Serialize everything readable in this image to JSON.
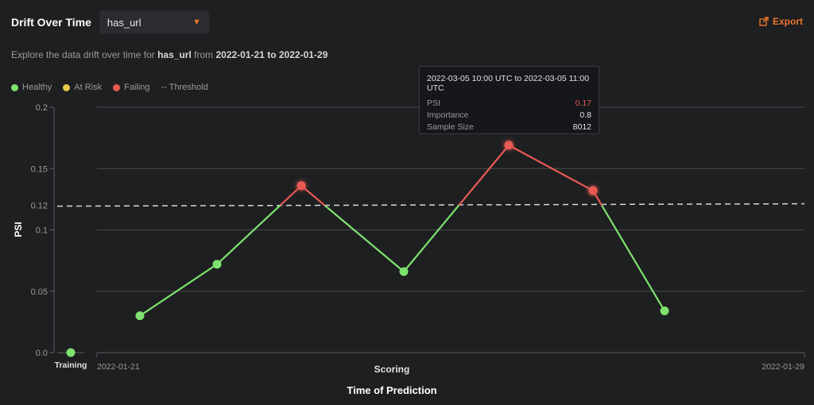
{
  "header": {
    "title": "Drift Over Time",
    "feature_select": "has_url",
    "export_label": "Export"
  },
  "subtitle": {
    "prefix": "Explore the data drift over time for",
    "feature": "has_url",
    "from_word": "from",
    "start": "2022-01-21",
    "to_word": "to",
    "end": "2022-01-29"
  },
  "legend": {
    "healthy": "Healthy",
    "at_risk": "At Risk",
    "failing": "Failing",
    "threshold": "-- Threshold"
  },
  "colors": {
    "healthy": "#7ee26f",
    "at_risk": "#e6c84a",
    "failing": "#e75a52",
    "accent": "#e8742e"
  },
  "tooltip": {
    "title": "2022-03-05 10:00 UTC to 2022-03-05 11:00 UTC",
    "rows": [
      {
        "label": "PSI",
        "value": "0.17"
      },
      {
        "label": "Importance",
        "value": "0.8"
      },
      {
        "label": "Sample Size",
        "value": "8012"
      }
    ]
  },
  "chart_data": {
    "type": "line",
    "ylabel": "PSI",
    "xlabel": "Time of Prediction",
    "scoring_label": "Scoring",
    "training_label": "Training",
    "x_start_label": "2022-01-21",
    "x_end_label": "2022-01-29",
    "ylim": [
      0,
      0.2
    ],
    "yticks": [
      "0.0",
      "0.05",
      "0.1",
      "0.15",
      "0.2"
    ],
    "threshold": 0.12,
    "threshold_label": "0.12",
    "grid": true,
    "training_point": {
      "value": 0.0,
      "status": "healthy"
    },
    "series": [
      {
        "values": [
          0.03,
          0.072,
          0.136,
          0.066,
          0.169,
          0.132,
          0.034
        ],
        "status": [
          "healthy",
          "healthy",
          "failing",
          "healthy",
          "failing",
          "failing",
          "healthy"
        ]
      }
    ]
  }
}
